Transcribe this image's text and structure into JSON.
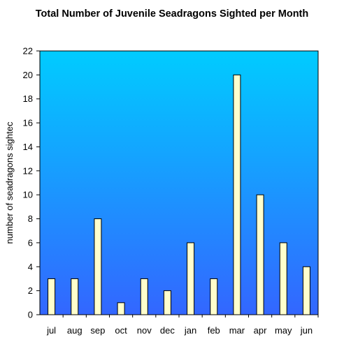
{
  "chart_data": {
    "type": "bar",
    "title": "Total Number of Juvenile Seadragons Sighted per Month",
    "xlabel": "",
    "ylabel": "number of seadragons sightec",
    "categories": [
      "jul",
      "aug",
      "sep",
      "oct",
      "nov",
      "dec",
      "jan",
      "feb",
      "mar",
      "apr",
      "may",
      "jun"
    ],
    "values": [
      3,
      3,
      8,
      1,
      3,
      2,
      6,
      3,
      20,
      10,
      6,
      4
    ],
    "ylim": [
      0,
      22
    ],
    "yticks": [
      "0",
      "2",
      "4",
      "6",
      "8",
      "10",
      "12",
      "14",
      "16",
      "18",
      "20",
      "22"
    ],
    "grid": false,
    "legend": "none",
    "colors": {
      "plot_top": "#00ccff",
      "plot_bottom": "#3366ff",
      "bar_fill": "#ffffcc",
      "bar_stroke": "#000000"
    }
  }
}
